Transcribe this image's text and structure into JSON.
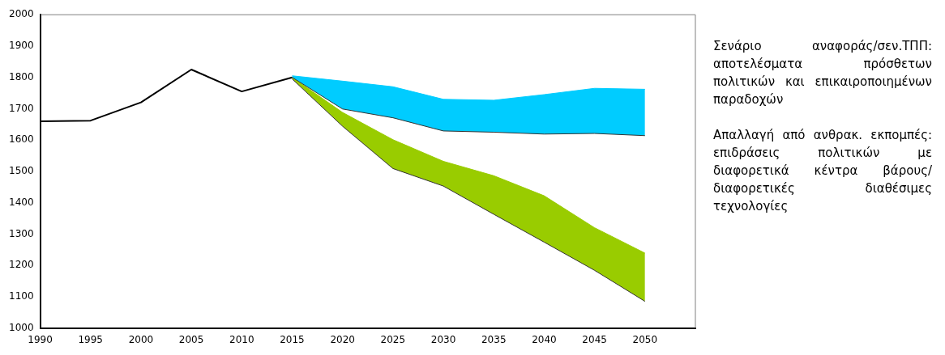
{
  "chart_data": {
    "type": "line",
    "categories": [
      "1990",
      "1995",
      "2000",
      "2005",
      "2010",
      "2015",
      "2020",
      "2025",
      "2030",
      "2035",
      "2040",
      "2045",
      "2050",
      null
    ],
    "ylim": [
      1000,
      2000
    ],
    "yticks": [
      1000,
      1100,
      1200,
      1300,
      1400,
      1500,
      1600,
      1700,
      1800,
      1900,
      2000
    ],
    "grid": false,
    "legend": false,
    "marker": "none",
    "series": [
      {
        "type": "line",
        "color": "#000000",
        "values": [
          1660,
          1662,
          1720,
          1825,
          1755,
          1800,
          null,
          null,
          null,
          null,
          null,
          null,
          null,
          null
        ]
      },
      {
        "type": "line",
        "color": "#333333",
        "values": [
          null,
          null,
          null,
          null,
          null,
          1800,
          1699,
          1671,
          1629,
          1625,
          1619,
          1621,
          1614,
          null
        ]
      },
      {
        "type": "area",
        "color": "#00ccff",
        "values": [
          null,
          null,
          null,
          null,
          null,
          1805,
          1788,
          1770,
          1730,
          1727,
          1745,
          1765,
          1762,
          null
        ]
      },
      {
        "type": "line",
        "color": "#333333",
        "values": [
          null,
          null,
          null,
          null,
          null,
          1795,
          1644,
          1509,
          1453,
          1363,
          1274,
          1184,
          1085,
          null
        ]
      },
      {
        "type": "area",
        "color": "#99cc00",
        "values": [
          null,
          null,
          null,
          null,
          null,
          1800,
          1688,
          1601,
          1532,
          1486,
          1422,
          1320,
          1239,
          null
        ]
      }
    ],
    "annotations": [
      "Σενάριο αναφοράς/σεν.ΤΠΠ: αποτελέσματα πρόσθετων πολιτικών και επικαιροποιημένων παραδοχών",
      "Απαλλαγή από ανθρακ. εκπομπές: επιδράσεις πολιτικών με διαφορετικά κέντρα βάρους/διαφορετικές διαθέσιμες τεχνολογίες"
    ]
  }
}
